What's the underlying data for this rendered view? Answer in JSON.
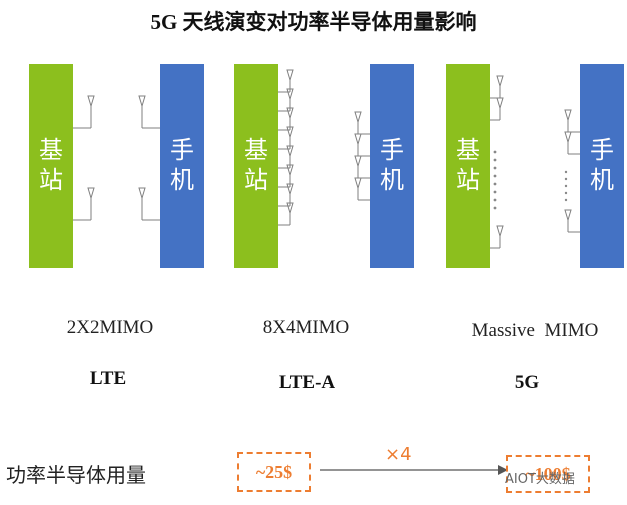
{
  "title": "5G 天线演变对功率半导体用量影响",
  "configs": [
    {
      "mimo": "2X2MIMO",
      "generation": "LTE",
      "base_station": [
        "基",
        "站"
      ],
      "phone": [
        "手",
        "机"
      ]
    },
    {
      "mimo": "8X4MIMO",
      "generation": "LTE-A",
      "base_station": [
        "基",
        "站"
      ],
      "phone": [
        "手",
        "机"
      ]
    },
    {
      "mimo": "Massive  MIMO",
      "generation": "5G",
      "base_station": [
        "基",
        "站"
      ],
      "phone": [
        "手",
        "机"
      ]
    }
  ],
  "usage": {
    "label": "功率半导体用量",
    "from_value": "~25$",
    "multiplier": "×4",
    "to_value": "~100$"
  },
  "watermark": "AIOT大数据",
  "colors": {
    "base_station": "#8cbf1e",
    "phone": "#4472c4",
    "accent": "#ed7d31"
  }
}
